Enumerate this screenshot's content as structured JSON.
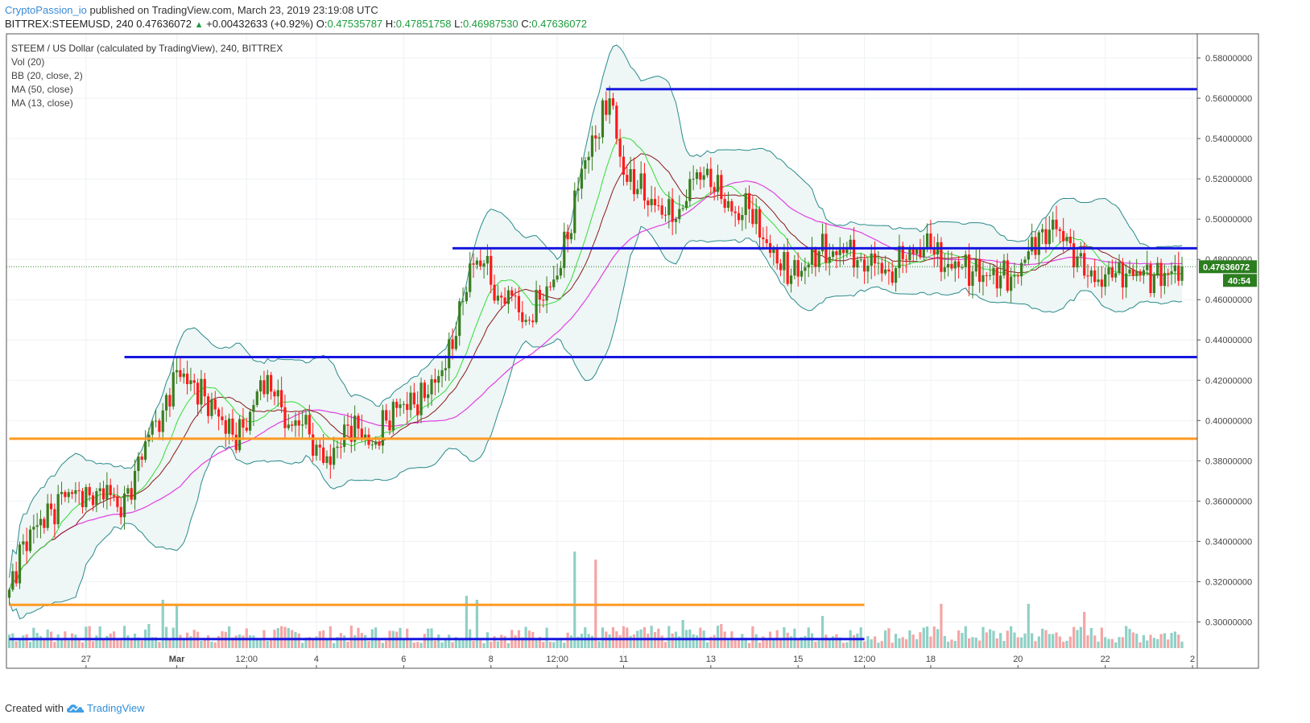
{
  "header": {
    "author": "CryptoPassion_io",
    "published_text": " published on TradingView.com, March 23, 2019 23:19:08 UTC",
    "symbol": "BITTREX:STEEMUSD, 240",
    "last_price": "0.47636072",
    "change": "+0.00432633 (+0.92%)",
    "o_label": "O:",
    "o_value": "0.47535787",
    "h_label": "H:",
    "h_value": "0.47851758",
    "l_label": "L:",
    "l_value": "0.46987530",
    "c_label": "C:",
    "c_value": "0.47636072"
  },
  "legend": {
    "title": "STEEM / US Dollar (calculated by TradingView), 240, BITTREX",
    "vol": "Vol (20)",
    "bb": "BB (20, close, 2)",
    "ma50": "MA (50, close)",
    "ma13": "MA (13, close)"
  },
  "footer": {
    "created_with": "Created with",
    "brand": "TradingView"
  },
  "colors": {
    "up": "#3a7d1f",
    "down": "#ff1a1a",
    "vol_up": "#8fd0c6",
    "vol_down": "#f4a5a5",
    "bb": "#2a8a8a",
    "bb_fill": "#eef6f6",
    "ma50": "#e23fe0",
    "ma13": "#33dd33",
    "ma20": "#8b1a1a",
    "hline_blue": "#1616e0",
    "hline_orange": "#ff9a22",
    "price_label_bg": "#2b7d1f"
  },
  "chart_data": {
    "type": "candlestick",
    "timeframe": "240",
    "y_ticks": [
      "0.58000000",
      "0.56000000",
      "0.54000000",
      "0.52000000",
      "0.50000000",
      "0.48000000",
      "0.46000000",
      "0.44000000",
      "0.42000000",
      "0.40000000",
      "0.38000000",
      "0.36000000",
      "0.34000000",
      "0.32000000",
      "0.30000000"
    ],
    "ylim": [
      0.287,
      0.592
    ],
    "x_ticks": [
      {
        "label": "27",
        "i": 22
      },
      {
        "label": "Mar",
        "i": 48
      },
      {
        "label": "12:00",
        "i": 68
      },
      {
        "label": "4",
        "i": 88
      },
      {
        "label": "6",
        "i": 113
      },
      {
        "label": "8",
        "i": 138
      },
      {
        "label": "12:00",
        "i": 157
      },
      {
        "label": "11",
        "i": 176
      },
      {
        "label": "13",
        "i": 201
      },
      {
        "label": "15",
        "i": 226
      },
      {
        "label": "12:00",
        "i": 245
      },
      {
        "label": "18",
        "i": 264
      },
      {
        "label": "20",
        "i": 289
      },
      {
        "label": "22",
        "i": 314
      },
      {
        "label": "2",
        "i": 339
      }
    ],
    "current_price": "0.47636072",
    "countdown": "40:54",
    "horizontal_lines": [
      {
        "price": 0.5645,
        "color": "blue",
        "from_i": 171,
        "to_i": 341
      },
      {
        "price": 0.4855,
        "color": "blue",
        "from_i": 127,
        "to_i": 341
      },
      {
        "price": 0.4315,
        "color": "blue",
        "from_i": 33,
        "to_i": 341
      },
      {
        "price": 0.391,
        "color": "orange",
        "from_i": 0,
        "to_i": 341
      },
      {
        "price": 0.3085,
        "color": "orange",
        "from_i": 0,
        "to_i": 245
      },
      {
        "price": 0.2915,
        "color": "blue",
        "from_i": 0,
        "to_i": 245
      }
    ],
    "anchors": [
      [
        0,
        0.316
      ],
      [
        4,
        0.34
      ],
      [
        8,
        0.348
      ],
      [
        12,
        0.356
      ],
      [
        16,
        0.362
      ],
      [
        20,
        0.365
      ],
      [
        24,
        0.358
      ],
      [
        28,
        0.368
      ],
      [
        32,
        0.352
      ],
      [
        36,
        0.375
      ],
      [
        40,
        0.393
      ],
      [
        44,
        0.405
      ],
      [
        48,
        0.425
      ],
      [
        52,
        0.42
      ],
      [
        56,
        0.412
      ],
      [
        60,
        0.402
      ],
      [
        64,
        0.393
      ],
      [
        68,
        0.395
      ],
      [
        72,
        0.42
      ],
      [
        76,
        0.412
      ],
      [
        80,
        0.398
      ],
      [
        84,
        0.398
      ],
      [
        88,
        0.388
      ],
      [
        92,
        0.378
      ],
      [
        96,
        0.398
      ],
      [
        100,
        0.396
      ],
      [
        104,
        0.388
      ],
      [
        108,
        0.4
      ],
      [
        112,
        0.408
      ],
      [
        116,
        0.408
      ],
      [
        120,
        0.413
      ],
      [
        124,
        0.425
      ],
      [
        128,
        0.442
      ],
      [
        132,
        0.478
      ],
      [
        136,
        0.478
      ],
      [
        140,
        0.462
      ],
      [
        144,
        0.462
      ],
      [
        148,
        0.45
      ],
      [
        152,
        0.46
      ],
      [
        156,
        0.47
      ],
      [
        160,
        0.49
      ],
      [
        164,
        0.525
      ],
      [
        168,
        0.54
      ],
      [
        172,
        0.56
      ],
      [
        176,
        0.522
      ],
      [
        180,
        0.515
      ],
      [
        184,
        0.51
      ],
      [
        188,
        0.502
      ],
      [
        192,
        0.505
      ],
      [
        196,
        0.52
      ],
      [
        200,
        0.525
      ],
      [
        204,
        0.51
      ],
      [
        208,
        0.503
      ],
      [
        212,
        0.505
      ],
      [
        216,
        0.49
      ],
      [
        220,
        0.478
      ],
      [
        224,
        0.472
      ],
      [
        228,
        0.476
      ],
      [
        232,
        0.484
      ],
      [
        236,
        0.484
      ],
      [
        240,
        0.485
      ],
      [
        244,
        0.48
      ],
      [
        248,
        0.478
      ],
      [
        252,
        0.474
      ],
      [
        256,
        0.48
      ],
      [
        260,
        0.485
      ],
      [
        264,
        0.486
      ],
      [
        268,
        0.476
      ],
      [
        272,
        0.476
      ],
      [
        276,
        0.474
      ],
      [
        280,
        0.472
      ],
      [
        284,
        0.472
      ],
      [
        288,
        0.472
      ],
      [
        292,
        0.484
      ],
      [
        296,
        0.495
      ],
      [
        300,
        0.495
      ],
      [
        304,
        0.488
      ],
      [
        308,
        0.472
      ],
      [
        312,
        0.47
      ],
      [
        316,
        0.471
      ],
      [
        320,
        0.473
      ],
      [
        324,
        0.472
      ],
      [
        328,
        0.472
      ],
      [
        332,
        0.473
      ],
      [
        336,
        0.4764
      ]
    ]
  }
}
